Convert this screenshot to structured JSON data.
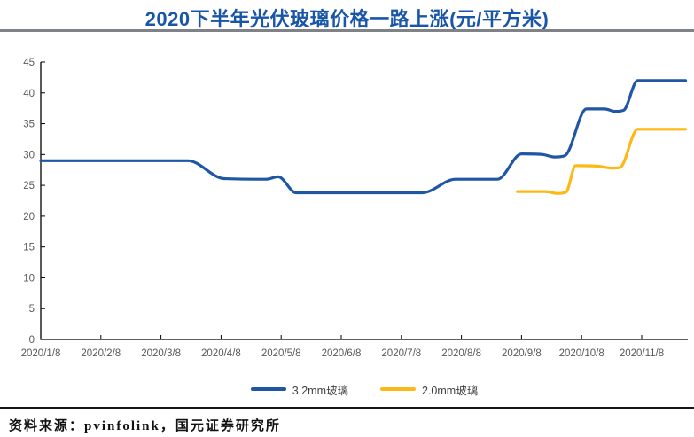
{
  "header": {
    "title": "2020下半年光伏玻璃价格一路上涨(元/平方米)",
    "title_color": "#1A56A8"
  },
  "chart_data": {
    "type": "line",
    "title": "2020下半年光伏玻璃价格一路上涨(元/平方米)",
    "unit": "元/平方米",
    "x_axis_note": "x values are months after 2020/1/8 (weekly price data)",
    "x_tick_labels": [
      "2020/1/8",
      "2020/2/8",
      "2020/3/8",
      "2020/4/8",
      "2020/5/8",
      "2020/6/8",
      "2020/7/8",
      "2020/8/8",
      "2020/9/8",
      "2020/10/8",
      "2020/11/8"
    ],
    "y_ticks": [
      0,
      5,
      10,
      15,
      20,
      25,
      30,
      35,
      40,
      45
    ],
    "ylim": [
      0,
      45
    ],
    "xlim_months": [
      0,
      10.78
    ],
    "grid": false,
    "legend_position": "bottom",
    "series": [
      {
        "name": "3.2mm玻璃",
        "color": "#1F57A5",
        "points": [
          [
            0,
            29
          ],
          [
            2.45,
            29
          ],
          [
            3.05,
            26.1
          ],
          [
            3.75,
            26
          ],
          [
            3.95,
            26.4
          ],
          [
            4.25,
            23.8
          ],
          [
            6.35,
            23.8
          ],
          [
            6.9,
            26
          ],
          [
            7.6,
            26
          ],
          [
            8.0,
            30.1
          ],
          [
            8.35,
            30
          ],
          [
            8.55,
            29.6
          ],
          [
            8.72,
            29.8
          ],
          [
            9.08,
            37.4
          ],
          [
            9.38,
            37.4
          ],
          [
            9.56,
            37
          ],
          [
            9.7,
            37.2
          ],
          [
            9.93,
            42
          ],
          [
            10.73,
            42
          ]
        ]
      },
      {
        "name": "2.0mm玻璃",
        "color": "#FCB815",
        "points": [
          [
            7.93,
            24
          ],
          [
            8.4,
            24
          ],
          [
            8.6,
            23.7
          ],
          [
            8.74,
            23.9
          ],
          [
            8.9,
            28.2
          ],
          [
            9.28,
            28.1
          ],
          [
            9.5,
            27.8
          ],
          [
            9.64,
            27.9
          ],
          [
            9.93,
            34.1
          ],
          [
            10.73,
            34.1
          ]
        ]
      }
    ]
  },
  "footer": {
    "source": "资料来源：pvinfolink，国元证券研究所"
  }
}
